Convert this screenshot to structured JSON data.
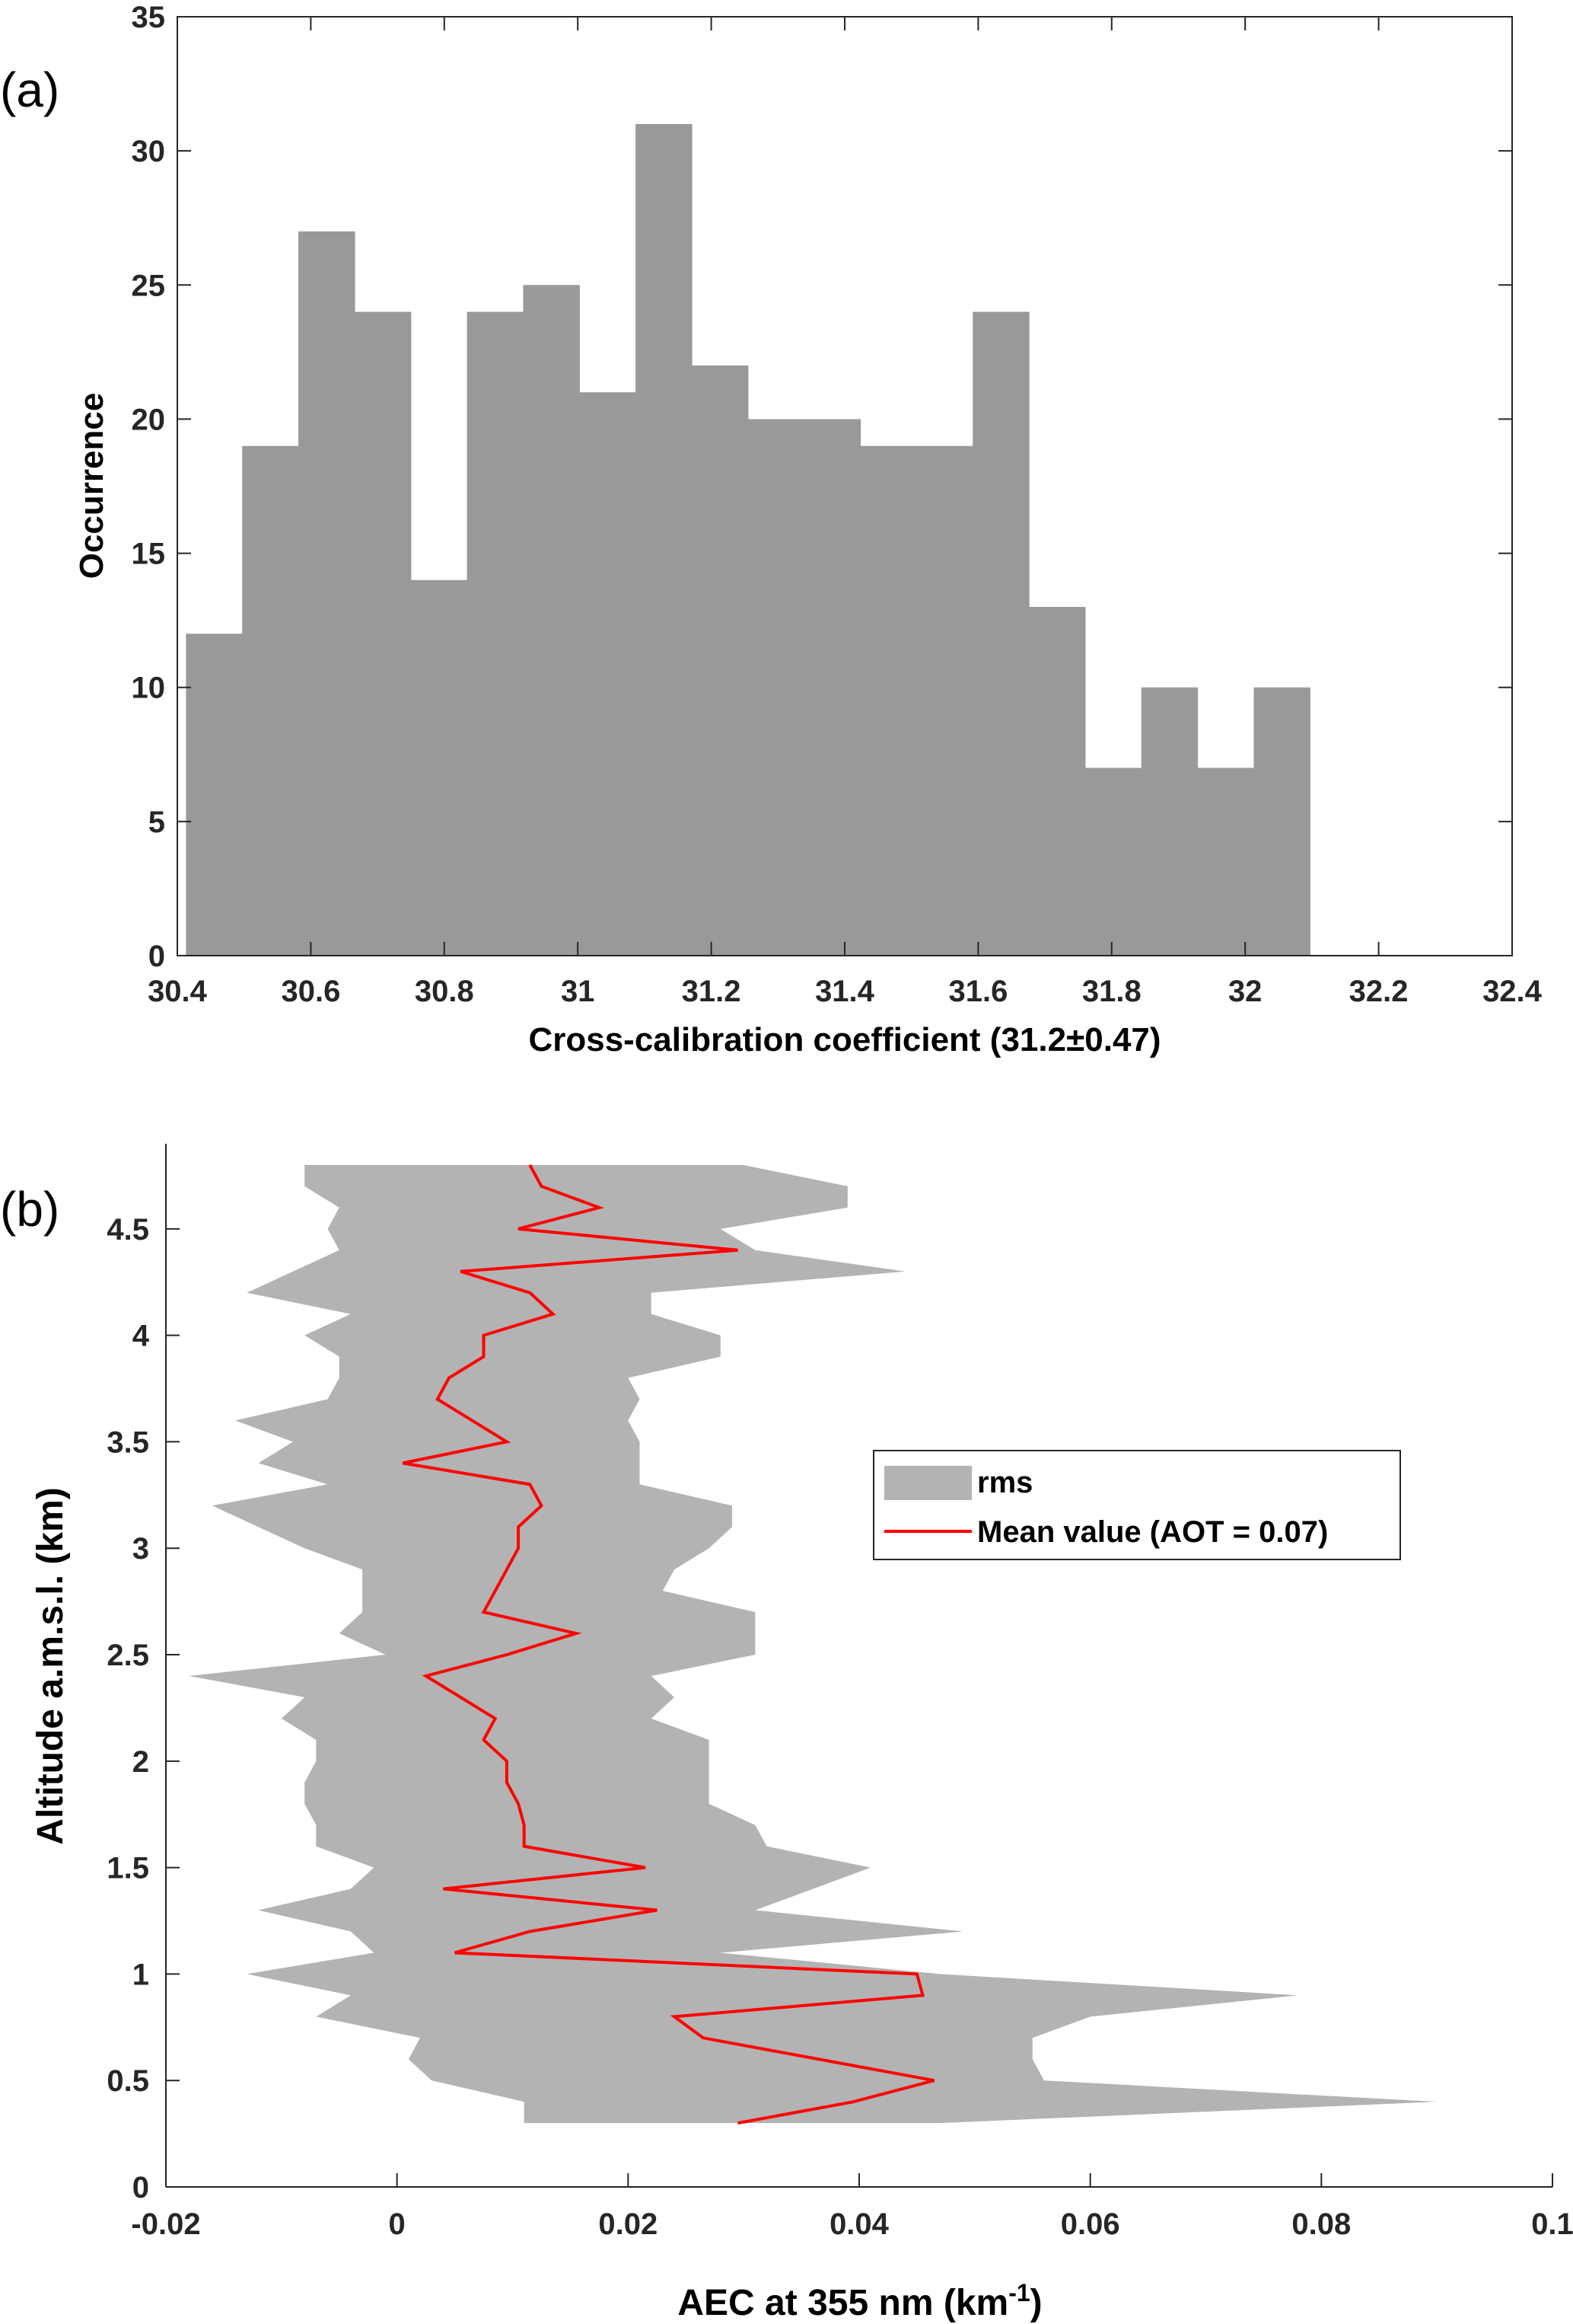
{
  "chart_data": [
    {
      "type": "bar",
      "panel_label": "(a)",
      "xlabel": "Cross-calibration coefficient (31.2±0.47)",
      "ylabel": "Occurrence",
      "xlim": [
        30.4,
        32.4
      ],
      "ylim": [
        0,
        35
      ],
      "xticks": [
        "30.4",
        "30.6",
        "30.8",
        "31",
        "31.2",
        "31.4",
        "31.6",
        "31.8",
        "32",
        "32.2",
        "32.4"
      ],
      "yticks": [
        "0",
        "5",
        "10",
        "15",
        "20",
        "25",
        "30",
        "35"
      ],
      "bin_width": 0.0842,
      "bin_start": 30.413,
      "values": [
        12,
        19,
        27,
        24,
        14,
        24,
        25,
        21,
        31,
        22,
        20,
        20,
        19,
        19,
        24,
        13,
        7,
        10,
        7,
        10
      ],
      "color": "#999999"
    },
    {
      "type": "area",
      "panel_label": "(b)",
      "xlabel": "AEC at 355 nm (km",
      "xlabel_sup": "-1",
      "xlabel_end": ")",
      "ylabel": "Altitude a.m.s.l. (km)",
      "xlim": [
        -0.02,
        0.1
      ],
      "ylim": [
        0,
        4.9
      ],
      "xticks": [
        "-0.02",
        "0",
        "0.02",
        "0.04",
        "0.06",
        "0.08",
        "0.1"
      ],
      "yticks": [
        "0",
        "0.5",
        "1",
        "1.5",
        "2",
        "2.5",
        "3",
        "3.5",
        "4",
        "4.5"
      ],
      "legend_position": "middle-right",
      "series": [
        {
          "name": "rms",
          "color": "#b3b3b3",
          "y": [
            0.3,
            0.4,
            0.5,
            0.6,
            0.7,
            0.8,
            0.9,
            1.0,
            1.1,
            1.2,
            1.3,
            1.4,
            1.5,
            1.6,
            1.7,
            1.8,
            1.9,
            2.0,
            2.1,
            2.2,
            2.3,
            2.4,
            2.5,
            2.6,
            2.7,
            2.8,
            2.9,
            3.0,
            3.1,
            3.2,
            3.3,
            3.4,
            3.5,
            3.6,
            3.7,
            3.8,
            3.9,
            4.0,
            4.1,
            4.2,
            4.3,
            4.4,
            4.5,
            4.6,
            4.7,
            4.8
          ],
          "upper": [
            0.047,
            0.09,
            0.056,
            0.055,
            0.055,
            0.06,
            0.078,
            0.047,
            0.028,
            0.049,
            0.031,
            0.036,
            0.041,
            0.032,
            0.031,
            0.027,
            0.027,
            0.027,
            0.027,
            0.022,
            0.024,
            0.022,
            0.031,
            0.031,
            0.031,
            0.023,
            0.024,
            0.027,
            0.029,
            0.029,
            0.021,
            0.021,
            0.021,
            0.02,
            0.021,
            0.02,
            0.028,
            0.028,
            0.022,
            0.022,
            0.044,
            0.031,
            0.028,
            0.039,
            0.039,
            0.03
          ],
          "lower": [
            0.011,
            0.011,
            0.003,
            0.001,
            0.002,
            -0.007,
            -0.004,
            -0.013,
            -0.002,
            -0.004,
            -0.012,
            -0.004,
            -0.002,
            -0.007,
            -0.007,
            -0.008,
            -0.008,
            -0.007,
            -0.007,
            -0.01,
            -0.008,
            -0.018,
            -0.001,
            -0.005,
            -0.003,
            -0.003,
            -0.003,
            -0.008,
            -0.012,
            -0.016,
            -0.006,
            -0.012,
            -0.009,
            -0.014,
            -0.006,
            -0.005,
            -0.005,
            -0.008,
            -0.004,
            -0.013,
            -0.009,
            -0.005,
            -0.006,
            -0.005,
            -0.008,
            -0.008
          ]
        },
        {
          "name": "Mean value (AOT = 0.07)",
          "color": "#ff0000",
          "y": [
            0.3,
            0.4,
            0.5,
            0.6,
            0.7,
            0.8,
            0.9,
            1.0,
            1.1,
            1.2,
            1.3,
            1.4,
            1.5,
            1.6,
            1.7,
            1.8,
            1.9,
            2.0,
            2.1,
            2.2,
            2.3,
            2.4,
            2.5,
            2.6,
            2.7,
            2.8,
            2.9,
            3.0,
            3.1,
            3.2,
            3.3,
            3.4,
            3.5,
            3.6,
            3.7,
            3.8,
            3.9,
            4.0,
            4.1,
            4.2,
            4.3,
            4.4,
            4.5,
            4.6,
            4.7,
            4.8
          ],
          "x": [
            0.0295,
            0.0395,
            0.0465,
            0.0365,
            0.0265,
            0.024,
            0.0455,
            0.045,
            0.005,
            0.0115,
            0.0225,
            0.004,
            0.0215,
            0.011,
            0.011,
            0.0105,
            0.0095,
            0.0095,
            0.0075,
            0.0085,
            0.0055,
            0.0025,
            0.0095,
            0.0155,
            0.0075,
            0.0085,
            0.0095,
            0.0105,
            0.0105,
            0.0125,
            0.0115,
            0.0005,
            0.0095,
            0.0065,
            0.0035,
            0.0045,
            0.0075,
            0.0075,
            0.0135,
            0.0115,
            0.0055,
            0.0295,
            0.0105,
            0.0175,
            0.0125,
            0.0115
          ]
        }
      ]
    }
  ]
}
